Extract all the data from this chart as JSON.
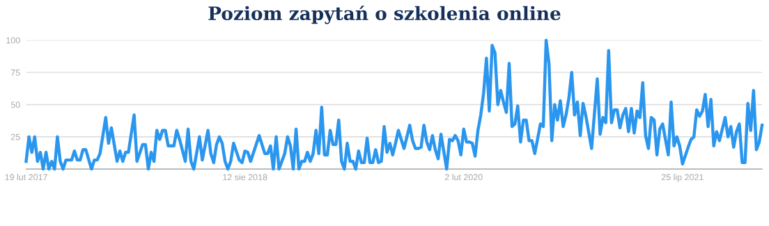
{
  "chart_data": {
    "type": "line",
    "title": "Poziom zapytań o szkolenia online",
    "x": [
      "2017-02-19",
      "2017-02-26",
      "2017-03-05",
      "2017-03-12",
      "2017-03-19",
      "2017-03-26",
      "2017-04-02",
      "2017-04-09",
      "2017-04-16",
      "2017-04-23",
      "2017-04-30",
      "2017-05-07",
      "2017-05-14",
      "2017-05-21",
      "2017-05-28",
      "2017-06-11",
      "2017-06-18",
      "2017-06-25",
      "2017-07-02",
      "2017-07-09",
      "2017-07-16",
      "2017-07-30",
      "2017-08-06",
      "2017-08-13",
      "2017-08-20",
      "2017-09-03",
      "2017-09-10",
      "2017-09-17",
      "2017-10-01",
      "2017-10-08",
      "2017-10-15",
      "2017-10-22",
      "2017-10-29",
      "2017-11-12",
      "2017-11-19",
      "2017-12-03",
      "2017-12-10",
      "2017-12-17",
      "2017-12-24",
      "2017-12-31",
      "2018-01-07",
      "2018-01-14",
      "2018-01-21",
      "2018-01-28",
      "2018-02-04",
      "2018-02-11",
      "2018-02-18",
      "2018-02-25",
      "2018-03-04",
      "2018-03-18",
      "2018-03-25",
      "2018-04-01",
      "2018-04-08",
      "2018-04-22",
      "2018-04-29",
      "2018-05-13",
      "2018-05-20",
      "2018-05-27",
      "2018-06-03",
      "2018-06-10",
      "2018-06-17",
      "2018-06-24",
      "2018-07-01",
      "2018-07-08",
      "2018-07-15",
      "2018-07-29",
      "2018-08-05",
      "2018-08-12",
      "2018-08-19",
      "2018-08-26",
      "2018-09-16",
      "2018-09-30",
      "2018-10-07",
      "2018-10-14",
      "2018-10-21",
      "2018-10-28",
      "2018-11-04",
      "2018-11-18",
      "2018-11-25",
      "2018-12-02",
      "2018-12-09",
      "2018-12-16",
      "2018-12-23",
      "2018-12-30",
      "2019-01-06",
      "2019-01-13",
      "2019-01-20",
      "2019-01-27",
      "2019-02-03",
      "2019-02-10",
      "2019-02-17",
      "2019-02-24",
      "2019-03-03",
      "2019-03-10",
      "2019-03-17",
      "2019-03-24",
      "2019-03-31",
      "2019-04-07",
      "2019-04-14",
      "2019-04-21",
      "2019-04-28",
      "2019-05-05",
      "2019-05-12",
      "2019-05-19",
      "2019-05-26",
      "2019-06-02",
      "2019-06-09",
      "2019-06-16",
      "2019-06-23",
      "2019-06-30",
      "2019-07-07",
      "2019-07-14",
      "2019-07-21",
      "2019-07-28",
      "2019-08-04",
      "2019-08-11",
      "2019-08-18",
      "2019-08-25",
      "2019-09-01",
      "2019-09-08",
      "2019-09-22",
      "2019-09-29",
      "2019-10-06",
      "2019-10-13",
      "2019-10-20",
      "2019-10-27",
      "2019-11-03",
      "2019-11-10",
      "2019-11-17",
      "2019-11-24",
      "2019-12-01",
      "2019-12-08",
      "2019-12-22",
      "2019-12-29",
      "2020-01-05",
      "2020-01-12",
      "2020-01-19",
      "2020-01-26",
      "2020-02-02",
      "2020-02-09",
      "2020-02-16",
      "2020-02-23",
      "2020-03-01",
      "2020-03-08",
      "2020-03-15",
      "2020-03-22",
      "2020-03-29",
      "2020-04-05",
      "2020-04-12",
      "2020-04-19",
      "2020-04-26",
      "2020-05-03",
      "2020-05-10",
      "2020-05-17",
      "2020-05-24",
      "2020-05-31",
      "2020-06-07",
      "2020-06-14",
      "2020-06-21",
      "2020-06-28",
      "2020-07-05",
      "2020-07-12",
      "2020-07-19",
      "2020-07-26",
      "2020-08-09",
      "2020-08-16",
      "2020-08-23",
      "2020-08-30",
      "2020-09-06",
      "2020-09-13",
      "2020-09-20",
      "2020-09-27",
      "2020-10-04",
      "2020-10-11",
      "2020-10-18",
      "2020-10-25",
      "2020-11-01",
      "2020-11-08",
      "2020-11-15",
      "2020-11-22",
      "2020-11-29",
      "2020-12-13",
      "2020-12-27",
      "2021-01-03",
      "2021-01-10",
      "2021-01-17",
      "2021-01-24",
      "2021-01-31",
      "2021-02-07",
      "2021-02-14",
      "2021-02-21",
      "2021-02-28",
      "2021-03-07",
      "2021-03-14",
      "2021-03-21",
      "2021-03-28",
      "2021-04-04",
      "2021-04-11",
      "2021-04-18",
      "2021-04-25",
      "2021-05-02",
      "2021-05-09",
      "2021-05-16",
      "2021-05-23",
      "2021-05-30",
      "2021-06-06",
      "2021-06-20",
      "2021-06-27",
      "2021-07-04",
      "2021-07-11",
      "2021-07-18",
      "2021-07-25",
      "2021-08-08",
      "2021-08-15",
      "2021-08-22",
      "2021-08-29",
      "2021-09-05",
      "2021-09-12",
      "2021-09-19",
      "2021-09-26",
      "2021-10-03",
      "2021-10-10",
      "2021-10-17",
      "2021-10-24",
      "2021-11-07",
      "2021-11-14",
      "2021-11-21",
      "2021-11-28",
      "2021-12-05",
      "2021-12-12",
      "2021-12-19",
      "2021-12-26",
      "2022-01-02",
      "2022-01-09",
      "2022-01-16",
      "2022-01-23",
      "2022-01-30",
      "2022-02-06"
    ],
    "series": [
      {
        "color": "#2b96ee",
        "values": [
          6,
          25,
          13,
          25,
          6,
          13,
          0,
          13,
          0,
          6,
          0,
          25,
          6,
          0,
          7,
          7,
          14,
          7,
          7,
          15,
          15,
          0,
          7,
          7,
          12,
          40,
          20,
          32,
          6,
          14,
          6,
          13,
          13,
          42,
          6,
          19,
          19,
          0,
          13,
          6,
          30,
          23,
          30,
          30,
          18,
          18,
          18,
          30,
          23,
          6,
          31,
          6,
          0,
          25,
          7,
          30,
          12,
          5,
          19,
          25,
          20,
          6,
          0,
          6,
          20,
          7,
          5,
          14,
          13,
          6,
          26,
          12,
          12,
          18,
          0,
          25,
          0,
          12,
          25,
          18,
          0,
          31,
          0,
          6,
          6,
          13,
          6,
          12,
          30,
          12,
          48,
          11,
          11,
          30,
          19,
          19,
          38,
          6,
          0,
          20,
          6,
          6,
          0,
          14,
          5,
          5,
          24,
          5,
          5,
          15,
          5,
          6,
          33,
          13,
          20,
          11,
          20,
          30,
          23,
          16,
          34,
          22,
          16,
          16,
          17,
          34,
          21,
          15,
          26,
          15,
          8,
          27,
          0,
          23,
          22,
          26,
          22,
          11,
          31,
          21,
          21,
          20,
          10,
          30,
          42,
          59,
          86,
          45,
          96,
          90,
          50,
          61,
          52,
          44,
          82,
          33,
          35,
          49,
          21,
          38,
          38,
          22,
          22,
          12,
          35,
          33,
          100,
          82,
          22,
          50,
          38,
          53,
          33,
          42,
          55,
          75,
          42,
          52,
          26,
          51,
          41,
          16,
          70,
          27,
          40,
          36,
          92,
          36,
          46,
          46,
          32,
          42,
          47,
          29,
          47,
          28,
          45,
          40,
          67,
          26,
          16,
          40,
          38,
          11,
          31,
          35,
          11,
          52,
          18,
          25,
          18,
          4,
          17,
          23,
          25,
          46,
          41,
          45,
          58,
          33,
          54,
          18,
          29,
          22,
          40,
          25,
          33,
          17,
          29,
          35,
          5,
          5,
          51,
          30,
          61,
          15,
          21,
          34
        ]
      }
    ],
    "xlim": [
      "2017-02-19",
      "2022-02-06"
    ],
    "xticks": [
      {
        "value": "2017-02-19",
        "label": "19 lut 2017"
      },
      {
        "value": "2018-08-12",
        "label": "12 sie 2018"
      },
      {
        "value": "2020-02-02",
        "label": "2 lut 2020"
      },
      {
        "value": "2021-07-25",
        "label": "25 lip 2021"
      }
    ],
    "ylim": [
      0,
      100
    ],
    "yticks": [
      {
        "value": 0,
        "label": null
      },
      25,
      50,
      75,
      100
    ],
    "grid": "y",
    "marker": "none",
    "line_style": "solid"
  }
}
